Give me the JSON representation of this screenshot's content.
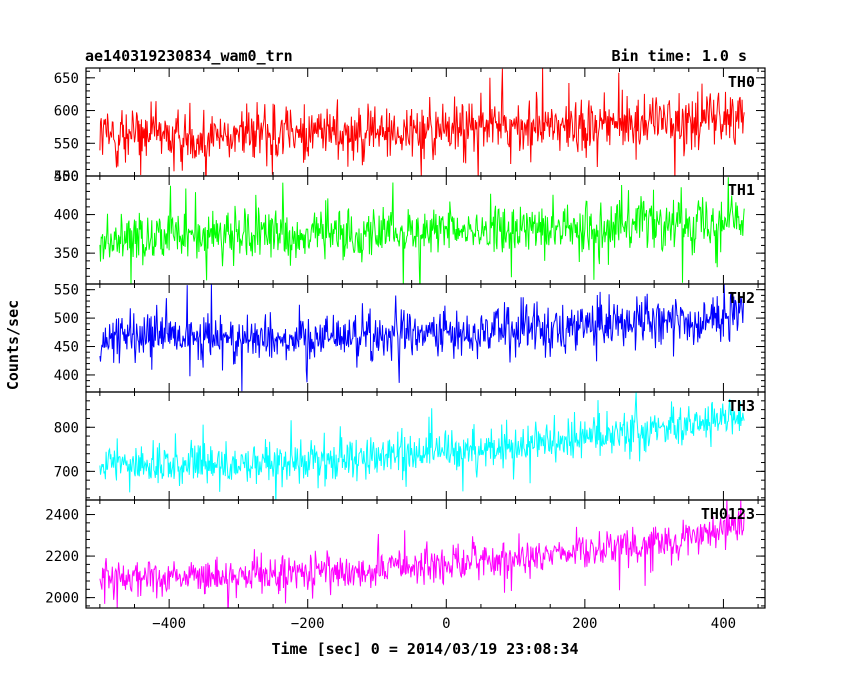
{
  "chart_data": {
    "type": "line",
    "title": "ae140319230834_wam0_trn",
    "subtitle": "Bin time: 1.0 s",
    "xlabel": "Time [sec] 0 = 2014/03/19 23:08:34",
    "ylabel": "Counts/sec",
    "xlim": [
      -520,
      460
    ],
    "x_range": [
      -500,
      430
    ],
    "x_ticks": [
      -400,
      -200,
      0,
      200,
      400
    ],
    "x_tick_labels": [
      "−400",
      "−200",
      "0",
      "200",
      "400"
    ],
    "panels": [
      {
        "name": "TH0",
        "color": "#ff0000",
        "ylim": [
          500,
          665
        ],
        "yticks": [
          500,
          550,
          600,
          650
        ],
        "ytick_labels": [
          "500",
          "550",
          "600",
          "650"
        ],
        "mean_start": 562,
        "mean_end": 592,
        "noise": 25,
        "spike": 70
      },
      {
        "name": "TH1",
        "color": "#00ff00",
        "ylim": [
          310,
          450
        ],
        "yticks": [
          350,
          400,
          450
        ],
        "ytick_labels": [
          "350",
          "400",
          "450"
        ],
        "mean_start": 372,
        "mean_end": 395,
        "noise": 19,
        "spike": 55
      },
      {
        "name": "TH2",
        "color": "#0000ff",
        "ylim": [
          370,
          560
        ],
        "yticks": [
          400,
          450,
          500,
          550
        ],
        "ytick_labels": [
          "400",
          "450",
          "500",
          "550"
        ],
        "mean_start": 465,
        "mean_end": 505,
        "noise": 25,
        "spike": 75
      },
      {
        "name": "TH3",
        "color": "#00ffff",
        "ylim": [
          635,
          880
        ],
        "yticks": [
          700,
          800
        ],
        "ytick_labels": [
          "700",
          "800"
        ],
        "mean_start": 715,
        "mean_end": 830,
        "noise": 27,
        "spike": 80
      },
      {
        "name": "TH0123",
        "color": "#ff00ff",
        "ylim": [
          1950,
          2470
        ],
        "yticks": [
          2000,
          2200,
          2400
        ],
        "ytick_labels": [
          "2000",
          "2200",
          "2400"
        ],
        "mean_start": 2100,
        "mean_end": 2330,
        "noise": 50,
        "spike": 150
      }
    ]
  }
}
